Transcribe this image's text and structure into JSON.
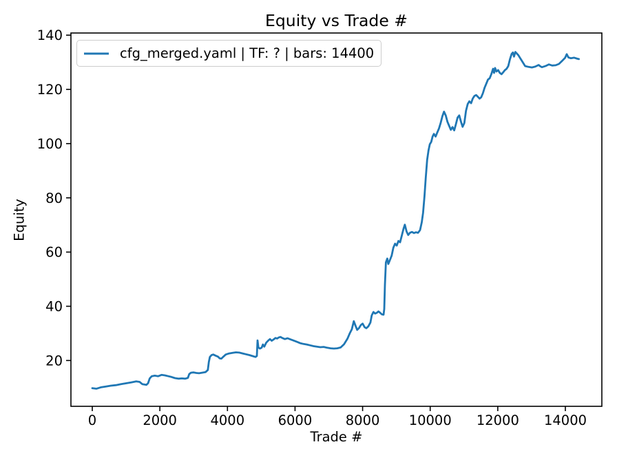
{
  "chart_data": {
    "type": "line",
    "title": "Equity vs Trade #",
    "xlabel": "Trade #",
    "ylabel": "Equity",
    "grid": false,
    "legend_position": "upper left",
    "xlim": [
      -632,
      15080
    ],
    "ylim": [
      3.1,
      140.8
    ],
    "xticks": [
      0,
      2000,
      4000,
      6000,
      8000,
      10000,
      12000,
      14000
    ],
    "yticks": [
      20,
      40,
      60,
      80,
      100,
      120,
      140
    ],
    "series": [
      {
        "name": "cfg_merged.yaml | TF: ? | bars: 14400",
        "color": "#1f77b4",
        "points": [
          [
            0,
            9.8
          ],
          [
            120,
            9.6
          ],
          [
            250,
            10.1
          ],
          [
            400,
            10.4
          ],
          [
            550,
            10.7
          ],
          [
            700,
            10.9
          ],
          [
            850,
            11.3
          ],
          [
            1000,
            11.6
          ],
          [
            1150,
            11.9
          ],
          [
            1300,
            12.3
          ],
          [
            1400,
            12.1
          ],
          [
            1480,
            11.3
          ],
          [
            1600,
            11.0
          ],
          [
            1650,
            11.6
          ],
          [
            1700,
            13.4
          ],
          [
            1760,
            14.2
          ],
          [
            1850,
            14.4
          ],
          [
            1950,
            14.2
          ],
          [
            2050,
            14.7
          ],
          [
            2150,
            14.5
          ],
          [
            2250,
            14.2
          ],
          [
            2350,
            13.9
          ],
          [
            2450,
            13.5
          ],
          [
            2550,
            13.3
          ],
          [
            2650,
            13.4
          ],
          [
            2750,
            13.3
          ],
          [
            2830,
            13.6
          ],
          [
            2870,
            15.0
          ],
          [
            2920,
            15.5
          ],
          [
            3000,
            15.6
          ],
          [
            3080,
            15.4
          ],
          [
            3160,
            15.3
          ],
          [
            3250,
            15.5
          ],
          [
            3350,
            15.7
          ],
          [
            3420,
            16.5
          ],
          [
            3450,
            19.5
          ],
          [
            3480,
            21.3
          ],
          [
            3530,
            22.0
          ],
          [
            3580,
            22.2
          ],
          [
            3650,
            21.8
          ],
          [
            3720,
            21.4
          ],
          [
            3770,
            20.8
          ],
          [
            3820,
            20.7
          ],
          [
            3880,
            21.4
          ],
          [
            3950,
            22.2
          ],
          [
            4050,
            22.6
          ],
          [
            4150,
            22.8
          ],
          [
            4250,
            23.0
          ],
          [
            4350,
            22.9
          ],
          [
            4450,
            22.6
          ],
          [
            4550,
            22.3
          ],
          [
            4650,
            22.0
          ],
          [
            4750,
            21.6
          ],
          [
            4830,
            21.3
          ],
          [
            4870,
            21.7
          ],
          [
            4890,
            27.4
          ],
          [
            4915,
            24.8
          ],
          [
            4960,
            24.4
          ],
          [
            5010,
            24.7
          ],
          [
            5050,
            25.9
          ],
          [
            5090,
            25.1
          ],
          [
            5150,
            26.6
          ],
          [
            5210,
            27.4
          ],
          [
            5260,
            27.9
          ],
          [
            5310,
            27.3
          ],
          [
            5360,
            27.7
          ],
          [
            5420,
            28.3
          ],
          [
            5470,
            28.1
          ],
          [
            5520,
            28.5
          ],
          [
            5570,
            28.7
          ],
          [
            5620,
            28.3
          ],
          [
            5700,
            27.9
          ],
          [
            5780,
            28.2
          ],
          [
            5860,
            27.8
          ],
          [
            5950,
            27.4
          ],
          [
            6050,
            26.9
          ],
          [
            6150,
            26.4
          ],
          [
            6250,
            26.1
          ],
          [
            6350,
            25.9
          ],
          [
            6450,
            25.6
          ],
          [
            6550,
            25.3
          ],
          [
            6650,
            25.1
          ],
          [
            6750,
            24.9
          ],
          [
            6850,
            25.0
          ],
          [
            6950,
            24.7
          ],
          [
            7050,
            24.5
          ],
          [
            7150,
            24.4
          ],
          [
            7250,
            24.5
          ],
          [
            7350,
            24.8
          ],
          [
            7450,
            26.0
          ],
          [
            7550,
            28.0
          ],
          [
            7620,
            30.0
          ],
          [
            7680,
            31.5
          ],
          [
            7740,
            34.5
          ],
          [
            7790,
            32.8
          ],
          [
            7840,
            31.3
          ],
          [
            7890,
            31.9
          ],
          [
            7950,
            33.1
          ],
          [
            8000,
            33.6
          ],
          [
            8060,
            32.3
          ],
          [
            8110,
            31.9
          ],
          [
            8170,
            32.6
          ],
          [
            8230,
            34.0
          ],
          [
            8270,
            36.6
          ],
          [
            8320,
            37.9
          ],
          [
            8370,
            37.3
          ],
          [
            8420,
            37.6
          ],
          [
            8470,
            38.1
          ],
          [
            8520,
            37.6
          ],
          [
            8570,
            37.0
          ],
          [
            8620,
            36.9
          ],
          [
            8640,
            39.0
          ],
          [
            8660,
            48.0
          ],
          [
            8690,
            56.2
          ],
          [
            8730,
            57.6
          ],
          [
            8760,
            55.6
          ],
          [
            8810,
            57.1
          ],
          [
            8860,
            58.7
          ],
          [
            8910,
            61.6
          ],
          [
            8960,
            63.1
          ],
          [
            9010,
            62.4
          ],
          [
            9060,
            64.1
          ],
          [
            9110,
            63.6
          ],
          [
            9160,
            66.1
          ],
          [
            9210,
            68.6
          ],
          [
            9250,
            70.1
          ],
          [
            9300,
            67.6
          ],
          [
            9350,
            66.3
          ],
          [
            9400,
            67.1
          ],
          [
            9460,
            67.4
          ],
          [
            9520,
            67.0
          ],
          [
            9580,
            67.3
          ],
          [
            9640,
            67.1
          ],
          [
            9700,
            68.1
          ],
          [
            9750,
            71.0
          ],
          [
            9790,
            74.5
          ],
          [
            9830,
            80.5
          ],
          [
            9870,
            87.5
          ],
          [
            9910,
            94.0
          ],
          [
            9950,
            97.5
          ],
          [
            9990,
            99.8
          ],
          [
            10030,
            100.6
          ],
          [
            10070,
            102.6
          ],
          [
            10110,
            103.6
          ],
          [
            10160,
            102.6
          ],
          [
            10210,
            104.1
          ],
          [
            10260,
            105.6
          ],
          [
            10310,
            107.6
          ],
          [
            10360,
            110.1
          ],
          [
            10410,
            111.8
          ],
          [
            10460,
            110.4
          ],
          [
            10510,
            108.1
          ],
          [
            10560,
            106.6
          ],
          [
            10610,
            105.1
          ],
          [
            10660,
            106.1
          ],
          [
            10710,
            104.9
          ],
          [
            10760,
            107.1
          ],
          [
            10810,
            109.6
          ],
          [
            10860,
            110.4
          ],
          [
            10910,
            108.1
          ],
          [
            10960,
            106.2
          ],
          [
            11010,
            107.6
          ],
          [
            11060,
            112.1
          ],
          [
            11110,
            114.6
          ],
          [
            11160,
            115.6
          ],
          [
            11210,
            114.9
          ],
          [
            11260,
            116.6
          ],
          [
            11310,
            117.6
          ],
          [
            11360,
            117.9
          ],
          [
            11410,
            117.3
          ],
          [
            11460,
            116.6
          ],
          [
            11510,
            117.1
          ],
          [
            11560,
            118.6
          ],
          [
            11610,
            120.6
          ],
          [
            11660,
            122.1
          ],
          [
            11710,
            123.6
          ],
          [
            11760,
            124.1
          ],
          [
            11810,
            125.6
          ],
          [
            11860,
            127.6
          ],
          [
            11890,
            126.1
          ],
          [
            11920,
            127.9
          ],
          [
            11960,
            126.6
          ],
          [
            12010,
            127.1
          ],
          [
            12060,
            126.1
          ],
          [
            12110,
            125.6
          ],
          [
            12160,
            126.3
          ],
          [
            12210,
            127.1
          ],
          [
            12260,
            127.6
          ],
          [
            12310,
            128.6
          ],
          [
            12360,
            131.1
          ],
          [
            12410,
            133.1
          ],
          [
            12450,
            133.6
          ],
          [
            12480,
            132.1
          ],
          [
            12520,
            133.8
          ],
          [
            12560,
            133.3
          ],
          [
            12610,
            132.6
          ],
          [
            12660,
            131.6
          ],
          [
            12710,
            130.6
          ],
          [
            12760,
            129.6
          ],
          [
            12810,
            128.6
          ],
          [
            12910,
            128.3
          ],
          [
            13010,
            128.1
          ],
          [
            13110,
            128.4
          ],
          [
            13210,
            129.0
          ],
          [
            13260,
            128.5
          ],
          [
            13310,
            128.2
          ],
          [
            13410,
            128.6
          ],
          [
            13510,
            129.2
          ],
          [
            13610,
            128.8
          ],
          [
            13710,
            128.9
          ],
          [
            13810,
            129.4
          ],
          [
            13910,
            130.6
          ],
          [
            13990,
            131.6
          ],
          [
            14040,
            133.0
          ],
          [
            14090,
            131.8
          ],
          [
            14160,
            131.5
          ],
          [
            14260,
            131.7
          ],
          [
            14360,
            131.3
          ],
          [
            14400,
            131.2
          ]
        ]
      }
    ]
  }
}
